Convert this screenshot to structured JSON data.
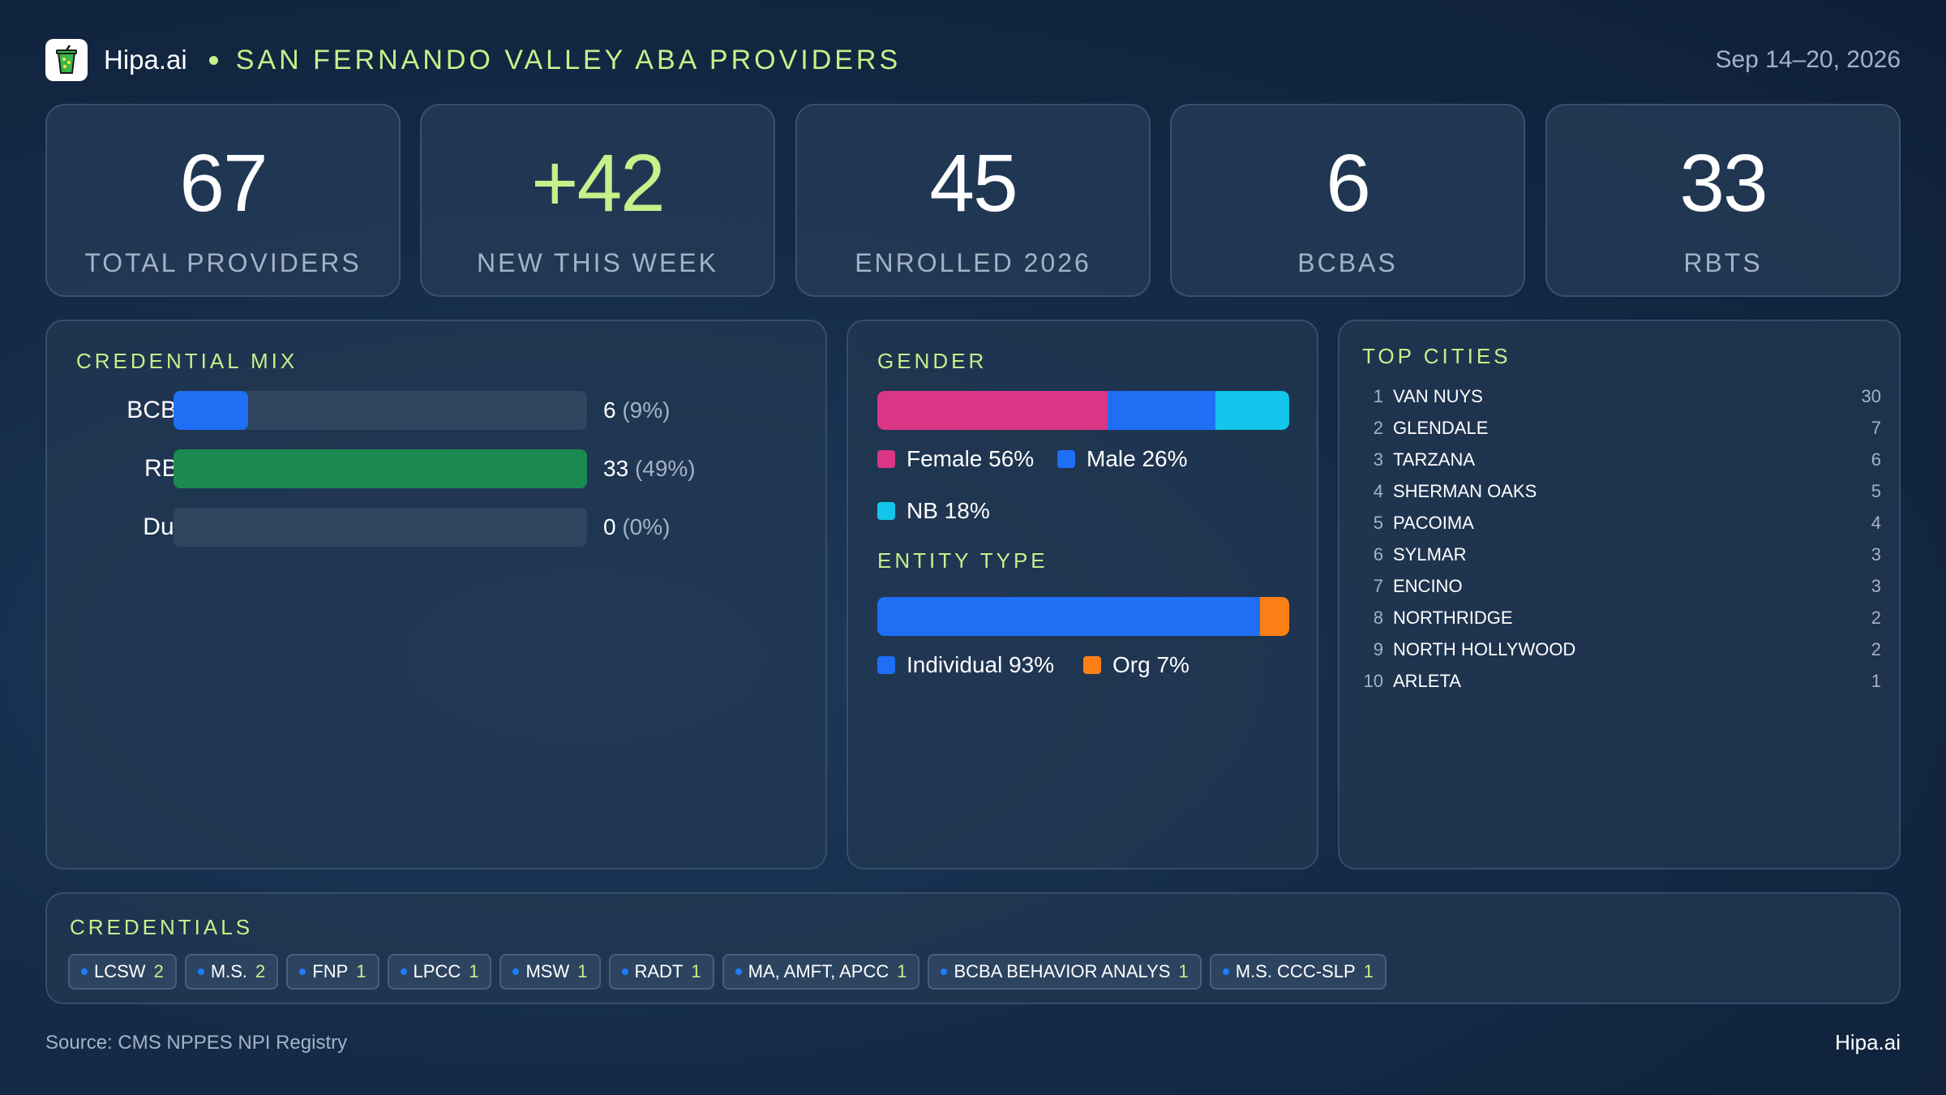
{
  "header": {
    "brand": "Hipa.ai",
    "title": "SAN FERNANDO VALLEY ABA PROVIDERS",
    "date": "Sep 14–20, 2026",
    "logo_icon": "cup-drink-icon"
  },
  "kpis": [
    {
      "value": "67",
      "label": "TOTAL PROVIDERS"
    },
    {
      "value": "+42",
      "label": "NEW THIS WEEK"
    },
    {
      "value": "45",
      "label": "ENROLLED 2026"
    },
    {
      "value": "6",
      "label": "BCBAS"
    },
    {
      "value": "33",
      "label": "RBTS"
    }
  ],
  "credential_mix": {
    "title": "CREDENTIAL MIX",
    "rows": [
      {
        "label": "BCBA",
        "count": "6",
        "pct": "(9%)",
        "fill": 0.18,
        "color": "#1f6ff5"
      },
      {
        "label": "RBT",
        "count": "33",
        "pct": "(49%)",
        "fill": 1.0,
        "color": "#1b8a50"
      },
      {
        "label": "Dual",
        "count": "0",
        "pct": "(0%)",
        "fill": 0,
        "color": "#1f6ff5"
      }
    ]
  },
  "gender": {
    "title": "GENDER",
    "segments": [
      {
        "label": "Female 56%",
        "value": 56,
        "color": "#d93687"
      },
      {
        "label": "Male 26%",
        "value": 26,
        "color": "#1f6ff5"
      },
      {
        "label": "NB 18%",
        "value": 18,
        "color": "#14c4ea"
      }
    ]
  },
  "entity_type": {
    "title": "ENTITY TYPE",
    "segments": [
      {
        "label": "Individual 93%",
        "value": 93,
        "color": "#1f6ff5"
      },
      {
        "label": "Org 7%",
        "value": 7,
        "color": "#fb7f14"
      }
    ]
  },
  "top_cities": {
    "title": "TOP CITIES",
    "rows": [
      {
        "rank": "1",
        "name": "VAN NUYS",
        "count": "30"
      },
      {
        "rank": "2",
        "name": "GLENDALE",
        "count": "7"
      },
      {
        "rank": "3",
        "name": "TARZANA",
        "count": "6"
      },
      {
        "rank": "4",
        "name": "SHERMAN OAKS",
        "count": "5"
      },
      {
        "rank": "5",
        "name": "PACOIMA",
        "count": "4"
      },
      {
        "rank": "6",
        "name": "SYLMAR",
        "count": "3"
      },
      {
        "rank": "7",
        "name": "ENCINO",
        "count": "3"
      },
      {
        "rank": "8",
        "name": "NORTHRIDGE",
        "count": "2"
      },
      {
        "rank": "9",
        "name": "NORTH HOLLYWOOD",
        "count": "2"
      },
      {
        "rank": "10",
        "name": "ARLETA",
        "count": "1"
      }
    ]
  },
  "credentials": {
    "title": "CREDENTIALS",
    "chips": [
      {
        "label": "LCSW",
        "count": "2"
      },
      {
        "label": "M.S.",
        "count": "2"
      },
      {
        "label": "FNP",
        "count": "1"
      },
      {
        "label": "LPCC",
        "count": "1"
      },
      {
        "label": "MSW",
        "count": "1"
      },
      {
        "label": "RADT",
        "count": "1"
      },
      {
        "label": "MA, AMFT, APCC",
        "count": "1"
      },
      {
        "label": "BCBA BEHAVIOR ANALYS",
        "count": "1"
      },
      {
        "label": "M.S. CCC-SLP",
        "count": "1"
      }
    ]
  },
  "footer": {
    "source": "Source: CMS NPPES NPI Registry",
    "brand": "Hipa.ai"
  }
}
